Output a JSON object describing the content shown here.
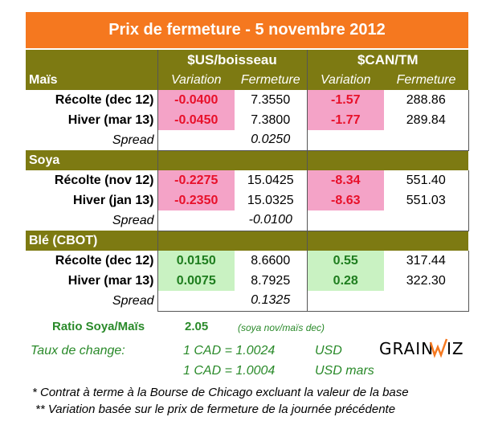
{
  "title": "Prix de fermeture - 5 novembre 2012",
  "headers": {
    "group_us": "$US/boisseau",
    "group_can": "$CAN/TM",
    "variation": "Variation",
    "fermeture": "Fermeture"
  },
  "sections": [
    {
      "name": "Maïs",
      "rows": [
        {
          "label": "Récolte (dec 12)",
          "var_us": "-0.0400",
          "close_us": "7.3550",
          "var_can": "-1.57",
          "close_can": "288.86",
          "sign": "neg"
        },
        {
          "label": "Hiver (mar 13)",
          "var_us": "-0.0450",
          "close_us": "7.3800",
          "var_can": "-1.77",
          "close_can": "289.84",
          "sign": "neg"
        }
      ],
      "spread_label": "Spread",
      "spread_value": "0.0250"
    },
    {
      "name": "Soya",
      "rows": [
        {
          "label": "Récolte (nov 12)",
          "var_us": "-0.2275",
          "close_us": "15.0425",
          "var_can": "-8.34",
          "close_can": "551.40",
          "sign": "neg"
        },
        {
          "label": "Hiver (jan 13)",
          "var_us": "-0.2350",
          "close_us": "15.0325",
          "var_can": "-8.63",
          "close_can": "551.03",
          "sign": "neg"
        }
      ],
      "spread_label": "Spread",
      "spread_value": "-0.0100"
    },
    {
      "name": "Blé (CBOT)",
      "rows": [
        {
          "label": "Récolte (dec 12)",
          "var_us": "0.0150",
          "close_us": "8.6600",
          "var_can": "0.55",
          "close_can": "317.44",
          "sign": "pos"
        },
        {
          "label": "Hiver (mar 13)",
          "var_us": "0.0075",
          "close_us": "8.7925",
          "var_can": "0.28",
          "close_can": "322.30",
          "sign": "pos"
        }
      ],
      "spread_label": "Spread",
      "spread_value": "0.1325"
    }
  ],
  "ratio": {
    "label": "Ratio Soya/Maïs",
    "value": "2.05",
    "note": "(soya nov/maïs dec)"
  },
  "exchange": {
    "label": "Taux de change:",
    "rate1": "1 CAD =  1.0024",
    "unit1": "USD",
    "rate2": "1 CAD =  1.0004",
    "unit2": "USD mars"
  },
  "footnotes": {
    "note1": "* Contrat à terme à la Bourse de Chicago excluant la valeur de la base",
    "note2": "** Variation basée sur le prix de fermeture de la journée précédente"
  },
  "logo": {
    "text_left": "GRAIN",
    "text_right": "IZ",
    "color_orange": "#f5781f"
  },
  "colors": {
    "title_bg": "#f5781f",
    "header_bg": "#7d7a12",
    "neg_bg": "#f4a3c7",
    "neg_text": "#e8102a",
    "pos_bg": "#c9f2c2",
    "pos_text": "#1e7d1e"
  }
}
